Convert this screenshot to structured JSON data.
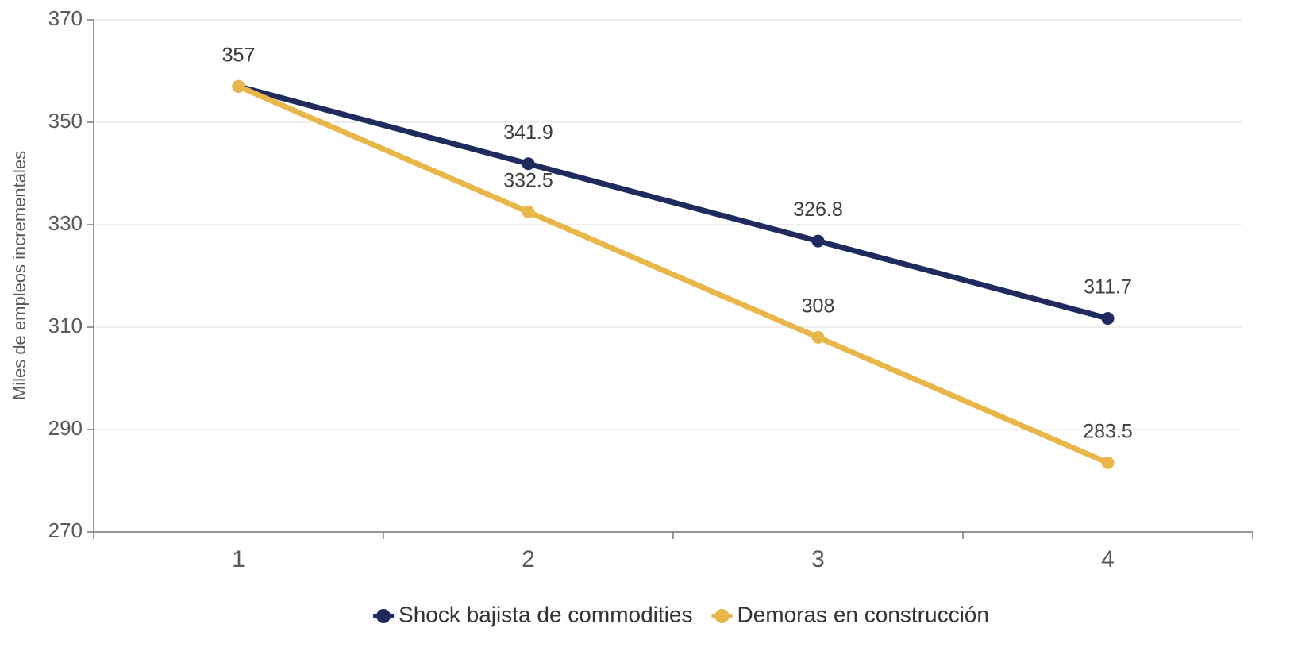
{
  "chart_data": {
    "type": "line",
    "y_label": "Miles de empleos incrementales",
    "categories": [
      "1",
      "2",
      "3",
      "4"
    ],
    "series": [
      {
        "name": "Shock bajista de commodities",
        "color": "#1f2a5e",
        "values": [
          357,
          341.9,
          326.8,
          311.7
        ]
      },
      {
        "name": "Demoras en construcción",
        "color": "#e9b649",
        "values": [
          357,
          332.5,
          308,
          283.5
        ]
      }
    ],
    "ylim": [
      270,
      370
    ],
    "yticks": [
      270,
      290,
      310,
      330,
      350,
      370
    ],
    "grid": true,
    "legend": "bottom"
  }
}
